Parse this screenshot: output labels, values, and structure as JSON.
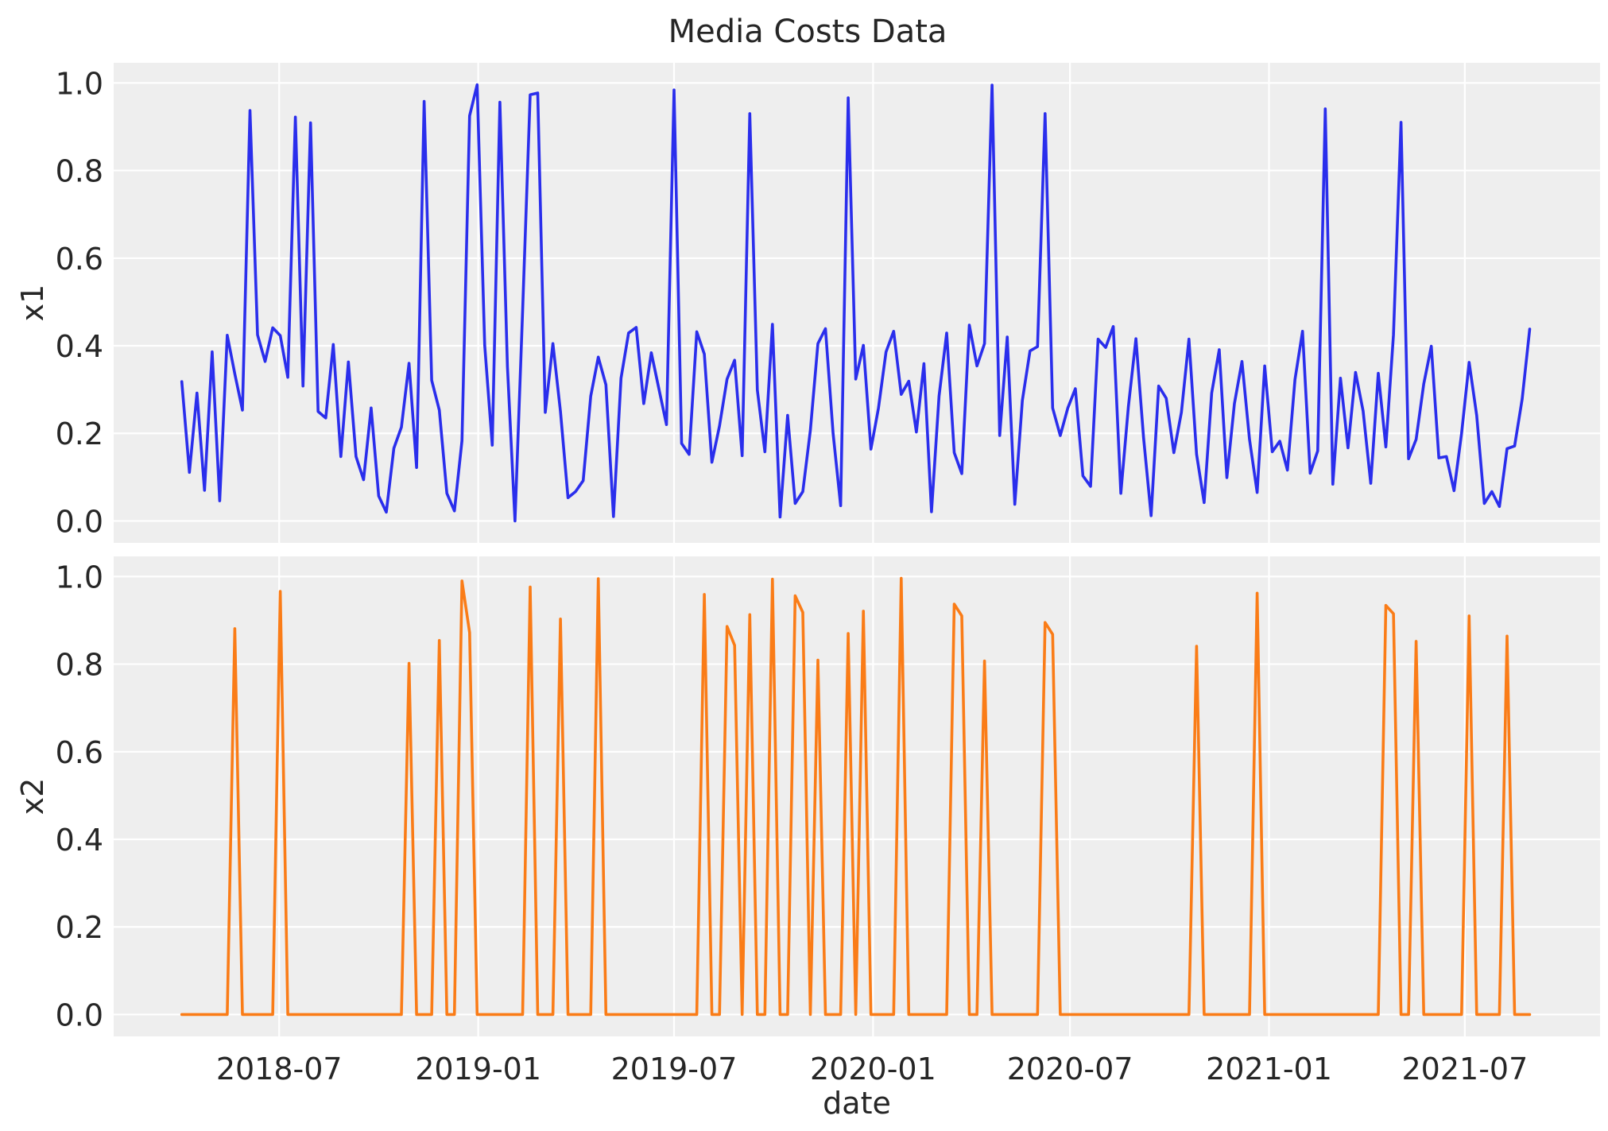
{
  "chart_data": [
    {
      "type": "line",
      "title": "Media Costs Data",
      "xlabel": "",
      "ylabel": "x1",
      "ylim": [
        -0.05,
        1.046
      ],
      "xlim": [
        "2018-01-29",
        "2021-11-03"
      ],
      "grid": true,
      "color": "#2a2eec",
      "yticks": [
        "0.0",
        "0.2",
        "0.4",
        "0.6",
        "0.8",
        "1.0"
      ],
      "xticks": [],
      "values": [
        0.318,
        0.111,
        0.292,
        0.07,
        0.386,
        0.046,
        0.424,
        0.336,
        0.253,
        0.937,
        0.425,
        0.364,
        0.441,
        0.423,
        0.328,
        0.922,
        0.308,
        0.909,
        0.25,
        0.235,
        0.403,
        0.147,
        0.363,
        0.147,
        0.094,
        0.258,
        0.057,
        0.02,
        0.166,
        0.214,
        0.36,
        0.122,
        0.958,
        0.321,
        0.253,
        0.063,
        0.023,
        0.183,
        0.925,
        0.996,
        0.401,
        0.173,
        0.956,
        0.352,
        0.0,
        0.48,
        0.973,
        0.977,
        0.248,
        0.405,
        0.25,
        0.053,
        0.067,
        0.092,
        0.285,
        0.374,
        0.311,
        0.01,
        0.326,
        0.429,
        0.442,
        0.268,
        0.384,
        0.302,
        0.22,
        0.984,
        0.177,
        0.152,
        0.432,
        0.381,
        0.134,
        0.217,
        0.324,
        0.367,
        0.149,
        0.93,
        0.299,
        0.158,
        0.449,
        0.009,
        0.241,
        0.04,
        0.067,
        0.207,
        0.405,
        0.439,
        0.2,
        0.035,
        0.966,
        0.324,
        0.401,
        0.164,
        0.258,
        0.386,
        0.433,
        0.289,
        0.319,
        0.203,
        0.359,
        0.021,
        0.285,
        0.429,
        0.156,
        0.108,
        0.447,
        0.354,
        0.405,
        0.995,
        0.195,
        0.42,
        0.038,
        0.275,
        0.388,
        0.398,
        0.93,
        0.258,
        0.195,
        0.258,
        0.302,
        0.103,
        0.079,
        0.415,
        0.396,
        0.444,
        0.063,
        0.261,
        0.416,
        0.19,
        0.012,
        0.308,
        0.28,
        0.156,
        0.248,
        0.415,
        0.152,
        0.042,
        0.292,
        0.391,
        0.099,
        0.268,
        0.364,
        0.186,
        0.065,
        0.354,
        0.158,
        0.182,
        0.116,
        0.323,
        0.433,
        0.109,
        0.16,
        0.941,
        0.084,
        0.326,
        0.167,
        0.339,
        0.251,
        0.086,
        0.337,
        0.169,
        0.425,
        0.91,
        0.142,
        0.186,
        0.313,
        0.399,
        0.144,
        0.147,
        0.069,
        0.2,
        0.362,
        0.241,
        0.04,
        0.067,
        0.033,
        0.165,
        0.171,
        0.278,
        0.438
      ]
    },
    {
      "type": "line",
      "title": "",
      "xlabel": "date",
      "ylabel": "x2",
      "ylim": [
        -0.05,
        1.046
      ],
      "xlim": [
        "2018-01-29",
        "2021-11-03"
      ],
      "grid": true,
      "color": "#fa7c17",
      "yticks": [
        "0.0",
        "0.2",
        "0.4",
        "0.6",
        "0.8",
        "1.0"
      ],
      "xticks": [
        "2018-07",
        "2019-01",
        "2019-07",
        "2020-01",
        "2020-07",
        "2021-01",
        "2021-07"
      ],
      "values": [
        0,
        0,
        0,
        0,
        0,
        0,
        0,
        0.881,
        0,
        0,
        0,
        0,
        0,
        0.966,
        0,
        0,
        0,
        0,
        0,
        0,
        0,
        0,
        0,
        0,
        0,
        0,
        0,
        0,
        0,
        0,
        0.802,
        0,
        0,
        0,
        0.854,
        0,
        0,
        0.99,
        0.872,
        0,
        0,
        0,
        0,
        0,
        0,
        0,
        0.976,
        0,
        0,
        0,
        0.903,
        0,
        0,
        0,
        0,
        0.995,
        0,
        0,
        0,
        0,
        0,
        0,
        0,
        0,
        0,
        0,
        0,
        0,
        0,
        0.959,
        0,
        0,
        0.886,
        0.843,
        0,
        0.913,
        0,
        0,
        0.994,
        0,
        0,
        0.956,
        0.918,
        0,
        0.809,
        0,
        0,
        0,
        0.87,
        0,
        0.921,
        0,
        0,
        0,
        0,
        0.996,
        0,
        0,
        0,
        0,
        0,
        0,
        0.937,
        0.91,
        0,
        0,
        0.807,
        0,
        0,
        0,
        0,
        0,
        0,
        0,
        0.895,
        0.868,
        0,
        0,
        0,
        0,
        0,
        0,
        0,
        0,
        0,
        0,
        0,
        0,
        0,
        0,
        0,
        0,
        0,
        0,
        0.841,
        0,
        0,
        0,
        0,
        0,
        0,
        0,
        0.962,
        0,
        0,
        0,
        0,
        0,
        0,
        0,
        0,
        0,
        0,
        0,
        0,
        0,
        0,
        0,
        0,
        0.934,
        0.915,
        0,
        0,
        0.852,
        0,
        0,
        0,
        0,
        0,
        0,
        0.91,
        0,
        0,
        0,
        0,
        0.864,
        0,
        0,
        0
      ]
    }
  ],
  "dates": [
    "2018-04-02",
    "2018-04-09",
    "2018-04-16",
    "2018-04-23",
    "2018-04-30",
    "2018-05-07",
    "2018-05-14",
    "2018-05-21",
    "2018-05-28",
    "2018-06-04",
    "2018-06-11",
    "2018-06-18",
    "2018-06-25",
    "2018-07-02",
    "2018-07-09",
    "2018-07-16",
    "2018-07-23",
    "2018-07-30",
    "2018-08-06",
    "2018-08-13",
    "2018-08-20",
    "2018-08-27",
    "2018-09-03",
    "2018-09-10",
    "2018-09-17",
    "2018-09-24",
    "2018-10-01",
    "2018-10-08",
    "2018-10-15",
    "2018-10-22",
    "2018-10-29",
    "2018-11-05",
    "2018-11-12",
    "2018-11-19",
    "2018-11-26",
    "2018-12-03",
    "2018-12-10",
    "2018-12-17",
    "2018-12-24",
    "2018-12-31",
    "2019-01-07",
    "2019-01-14",
    "2019-01-21",
    "2019-01-28",
    "2019-02-04",
    "2019-02-11",
    "2019-02-18",
    "2019-02-25",
    "2019-03-04",
    "2019-03-11",
    "2019-03-18",
    "2019-03-25",
    "2019-04-01",
    "2019-04-08",
    "2019-04-15",
    "2019-04-22",
    "2019-04-29",
    "2019-05-06",
    "2019-05-13",
    "2019-05-20",
    "2019-05-27",
    "2019-06-03",
    "2019-06-10",
    "2019-06-17",
    "2019-06-24",
    "2019-07-01",
    "2019-07-08",
    "2019-07-15",
    "2019-07-22",
    "2019-07-29",
    "2019-08-05",
    "2019-08-12",
    "2019-08-19",
    "2019-08-26",
    "2019-09-02",
    "2019-09-09",
    "2019-09-16",
    "2019-09-23",
    "2019-09-30",
    "2019-10-07",
    "2019-10-14",
    "2019-10-21",
    "2019-10-28",
    "2019-11-04",
    "2019-11-11",
    "2019-11-18",
    "2019-11-25",
    "2019-12-02",
    "2019-12-09",
    "2019-12-16",
    "2019-12-23",
    "2019-12-30",
    "2020-01-06",
    "2020-01-13",
    "2020-01-20",
    "2020-01-27",
    "2020-02-03",
    "2020-02-10",
    "2020-02-17",
    "2020-02-24",
    "2020-03-02",
    "2020-03-09",
    "2020-03-16",
    "2020-03-23",
    "2020-03-30",
    "2020-04-06",
    "2020-04-13",
    "2020-04-20",
    "2020-04-27",
    "2020-05-04",
    "2020-05-11",
    "2020-05-18",
    "2020-05-25",
    "2020-06-01",
    "2020-06-08",
    "2020-06-15",
    "2020-06-22",
    "2020-06-29",
    "2020-07-06",
    "2020-07-13",
    "2020-07-20",
    "2020-07-27",
    "2020-08-03",
    "2020-08-10",
    "2020-08-17",
    "2020-08-24",
    "2020-08-31",
    "2020-09-07",
    "2020-09-14",
    "2020-09-21",
    "2020-09-28",
    "2020-10-05",
    "2020-10-12",
    "2020-10-19",
    "2020-10-26",
    "2020-11-02",
    "2020-11-09",
    "2020-11-16",
    "2020-11-23",
    "2020-11-30",
    "2020-12-07",
    "2020-12-14",
    "2020-12-21",
    "2020-12-28",
    "2021-01-04",
    "2021-01-11",
    "2021-01-18",
    "2021-01-25",
    "2021-02-01",
    "2021-02-08",
    "2021-02-15",
    "2021-02-22",
    "2021-03-01",
    "2021-03-08",
    "2021-03-15",
    "2021-03-22",
    "2021-03-29",
    "2021-04-05",
    "2021-04-12",
    "2021-04-19",
    "2021-04-26",
    "2021-05-03",
    "2021-05-10",
    "2021-05-17",
    "2021-05-24",
    "2021-05-31",
    "2021-06-07",
    "2021-06-14",
    "2021-06-21",
    "2021-06-28",
    "2021-07-05",
    "2021-07-12",
    "2021-07-19",
    "2021-07-26",
    "2021-08-02",
    "2021-08-09",
    "2021-08-16",
    "2021-08-23",
    "2021-08-30"
  ]
}
